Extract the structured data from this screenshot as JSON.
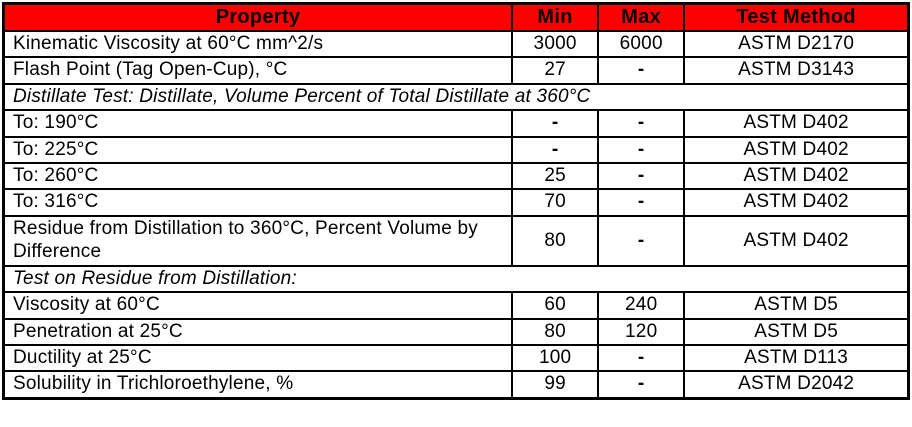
{
  "table": {
    "header_bg_color": "#ff0000",
    "border_color": "#000000",
    "columns": {
      "property": "Property",
      "min": "Min",
      "max": "Max",
      "method": "Test Method"
    },
    "rows": [
      {
        "property": "Kinematic Viscosity at 60°C mm^2/s",
        "min": "3000",
        "max": "6000",
        "method": "ASTM D2170"
      },
      {
        "property": "Flash Point (Tag Open-Cup), °C",
        "min": "27",
        "max": "-",
        "method": "ASTM D3143"
      },
      {
        "section_label": "Distillate Test: Distillate, Volume Percent of Total Distillate at 360°C"
      },
      {
        "property": "To: 190°C",
        "min": "-",
        "max": "-",
        "method": "ASTM D402"
      },
      {
        "property": "To: 225°C",
        "min": "-",
        "max": "-",
        "method": "ASTM D402"
      },
      {
        "property": "To: 260°C",
        "min": "25",
        "max": "-",
        "method": "ASTM D402"
      },
      {
        "property": "To: 316°C",
        "min": "70",
        "max": "-",
        "method": "ASTM D402"
      },
      {
        "property": "Residue from Distillation to 360°C, Percent Volume by Difference",
        "min": "80",
        "max": "-",
        "method": "ASTM D402"
      },
      {
        "section_label": "Test on Residue from Distillation:"
      },
      {
        "property": "Viscosity at 60°C",
        "min": "60",
        "max": "240",
        "method": "ASTM D5"
      },
      {
        "property": "Penetration at 25°C",
        "min": "80",
        "max": "120",
        "method": "ASTM D5"
      },
      {
        "property": "Ductility at 25°C",
        "min": "100",
        "max": "-",
        "method": "ASTM D113"
      },
      {
        "property": "Solubility in Trichloroethylene, %",
        "min": "99",
        "max": "-",
        "method": "ASTM D2042"
      }
    ]
  }
}
